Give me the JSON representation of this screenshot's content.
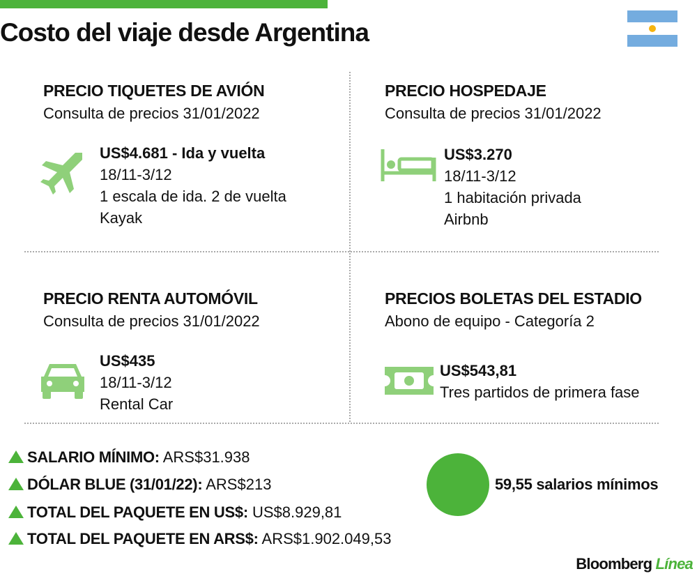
{
  "header": {
    "title": "Costo del viaje desde Argentina"
  },
  "sections": [
    {
      "title": "PRECIO TIQUETES DE AVIÓN",
      "subtitle": "Consulta de precios 31/01/2022",
      "lines": [
        "US$4.681 - Ida y vuelta",
        "18/11-3/12",
        "1 escala de ida. 2 de vuelta",
        "Kayak"
      ]
    },
    {
      "title": "PRECIO HOSPEDAJE",
      "subtitle": "Consulta de precios 31/01/2022",
      "lines": [
        "US$3.270",
        "18/11-3/12",
        "1 habitación privada",
        "Airbnb"
      ]
    },
    {
      "title": "PRECIO RENTA AUTOMÓVIL",
      "subtitle": "Consulta de precios 31/01/2022",
      "lines": [
        "US$435",
        "18/11-3/12",
        "Rental Car"
      ]
    },
    {
      "title": "PRECIOS BOLETAS DEL ESTADIO",
      "subtitle": "Abono de equipo - Categoría 2",
      "lines": [
        "US$543,81",
        "Tres partidos de primera fase"
      ]
    }
  ],
  "summary": [
    {
      "label": "SALARIO MÍNIMO:",
      "value": "ARS$31.938"
    },
    {
      "label": "DÓLAR BLUE (31/01/22):",
      "value": "ARS$213"
    },
    {
      "label": "TOTAL DEL PAQUETE EN US$:",
      "value": "US$8.929,81"
    },
    {
      "label": "TOTAL DEL PAQUETE EN ARS$:",
      "value": "ARS$1.902.049,53"
    }
  ],
  "callout": "59,55 salarios mínimos",
  "footer": {
    "brand": "Bloomberg",
    "sub": "Línea"
  }
}
